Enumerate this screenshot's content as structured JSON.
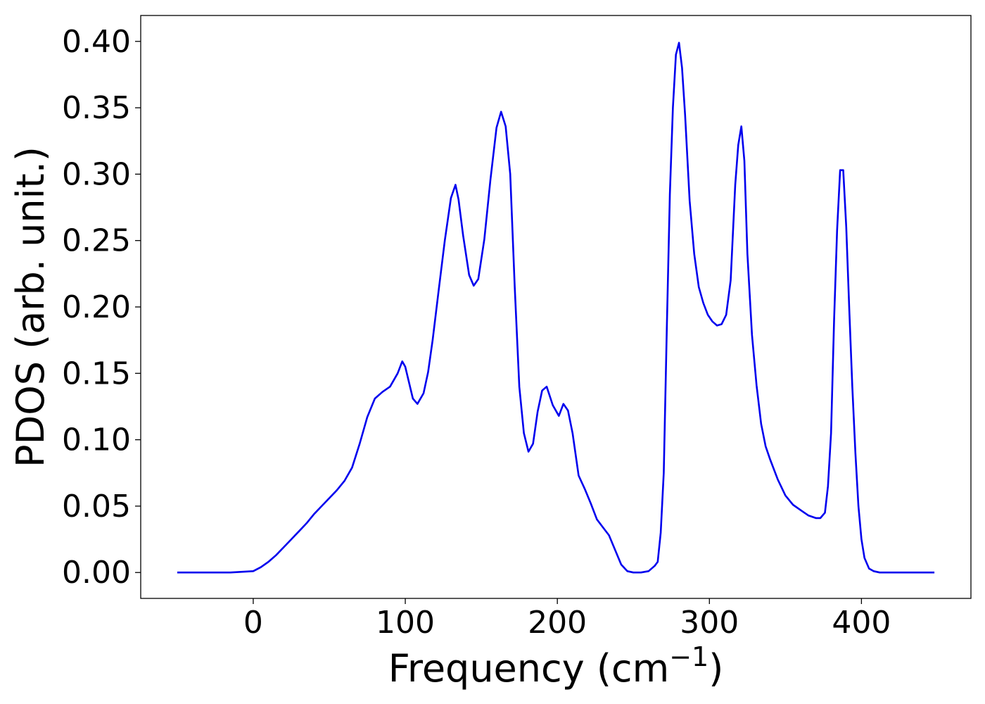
{
  "chart_data": {
    "type": "line",
    "xlabel": "Frequency (cm",
    "xlabel_sup": "−1",
    "xlabel_close": ")",
    "ylabel": "PDOS (arb. unit.)",
    "xlim": [
      -74,
      472
    ],
    "ylim": [
      -0.0195,
      0.4195
    ],
    "xticks": [
      0,
      100,
      200,
      300,
      400
    ],
    "xtick_labels": [
      "0",
      "100",
      "200",
      "300",
      "400"
    ],
    "yticks": [
      0.0,
      0.05,
      0.1,
      0.15,
      0.2,
      0.25,
      0.3,
      0.35,
      0.4
    ],
    "ytick_labels": [
      "0.00",
      "0.05",
      "0.10",
      "0.15",
      "0.20",
      "0.25",
      "0.30",
      "0.35",
      "0.40"
    ],
    "grid": false,
    "line_color": "#0000ee",
    "series": [
      {
        "x": [
          -50,
          -15,
          0,
          5,
          10,
          15,
          20,
          25,
          30,
          35,
          40,
          45,
          50,
          55,
          60,
          65,
          70,
          75,
          80,
          85,
          90,
          95,
          98,
          100,
          105,
          108,
          112,
          115,
          118,
          122,
          126,
          130,
          133,
          135,
          138,
          142,
          145,
          148,
          152,
          156,
          160,
          163,
          166,
          169,
          172,
          175,
          178,
          181,
          184,
          187,
          190,
          193,
          197,
          201,
          204,
          207,
          210,
          214,
          218,
          222,
          226,
          230,
          234,
          238,
          242,
          246,
          250,
          255,
          260,
          264,
          266,
          268,
          270,
          272,
          274,
          276,
          278,
          280,
          282,
          284,
          287,
          290,
          293,
          296,
          299,
          302,
          305,
          308,
          311,
          314,
          317,
          319,
          321,
          323,
          325,
          328,
          331,
          334,
          337,
          340,
          345,
          350,
          355,
          360,
          365,
          370,
          373,
          376,
          378,
          380,
          382,
          384,
          386,
          388,
          390,
          392,
          394,
          396,
          398,
          400,
          402,
          405,
          408,
          412,
          420,
          448
        ],
        "y": [
          0.0,
          0.0,
          0.001,
          0.004,
          0.008,
          0.013,
          0.019,
          0.025,
          0.031,
          0.037,
          0.044,
          0.05,
          0.056,
          0.062,
          0.069,
          0.079,
          0.097,
          0.117,
          0.131,
          0.136,
          0.14,
          0.15,
          0.159,
          0.155,
          0.131,
          0.127,
          0.135,
          0.151,
          0.175,
          0.213,
          0.25,
          0.282,
          0.292,
          0.281,
          0.254,
          0.224,
          0.216,
          0.221,
          0.251,
          0.296,
          0.335,
          0.347,
          0.336,
          0.3,
          0.215,
          0.14,
          0.105,
          0.091,
          0.097,
          0.121,
          0.137,
          0.14,
          0.126,
          0.118,
          0.127,
          0.122,
          0.105,
          0.073,
          0.063,
          0.052,
          0.04,
          0.034,
          0.028,
          0.017,
          0.006,
          0.001,
          0.0,
          0.0,
          0.001,
          0.005,
          0.008,
          0.03,
          0.075,
          0.185,
          0.285,
          0.35,
          0.39,
          0.399,
          0.38,
          0.345,
          0.28,
          0.24,
          0.215,
          0.203,
          0.194,
          0.189,
          0.186,
          0.187,
          0.194,
          0.22,
          0.292,
          0.322,
          0.336,
          0.31,
          0.24,
          0.179,
          0.141,
          0.112,
          0.095,
          0.085,
          0.07,
          0.058,
          0.051,
          0.047,
          0.043,
          0.041,
          0.041,
          0.045,
          0.065,
          0.105,
          0.19,
          0.258,
          0.303,
          0.303,
          0.26,
          0.198,
          0.14,
          0.09,
          0.05,
          0.025,
          0.011,
          0.003,
          0.001,
          0.0,
          0.0,
          0.0
        ]
      }
    ]
  }
}
